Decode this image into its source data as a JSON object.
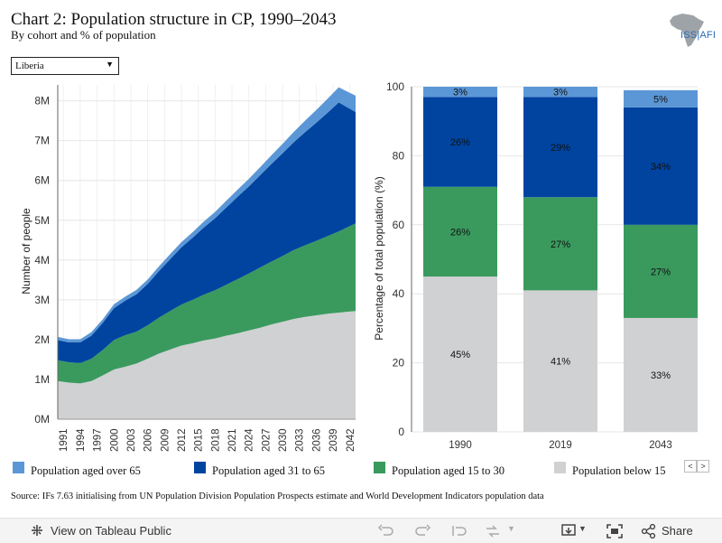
{
  "header": {
    "title": "Chart 2: Population structure in CP, 1990–2043",
    "subtitle": "By cohort and % of population",
    "logo_text": "ISS|AFI"
  },
  "filter": {
    "selected": "Liberia"
  },
  "colors": {
    "over65": "#5b97d6",
    "age31to65": "#0044a0",
    "age15to30": "#3a9a5e",
    "below15": "#d0d1d3",
    "grid": "#e6e6e6",
    "axis": "#666666"
  },
  "chart_data": [
    {
      "type": "area",
      "stacked": true,
      "ylabel": "Number of people",
      "xlim": [
        1990,
        2043
      ],
      "ylim": [
        0,
        8400000
      ],
      "y_ticks": [
        0,
        1000000,
        2000000,
        3000000,
        4000000,
        5000000,
        6000000,
        7000000,
        8000000
      ],
      "y_tick_labels": [
        "0M",
        "1M",
        "2M",
        "3M",
        "4M",
        "5M",
        "6M",
        "7M",
        "8M"
      ],
      "x_ticks": [
        1991,
        1994,
        1997,
        2000,
        2003,
        2006,
        2009,
        2012,
        2015,
        2018,
        2021,
        2024,
        2027,
        2030,
        2033,
        2036,
        2039,
        2042
      ],
      "grid": true,
      "x": [
        1990,
        1992,
        1994,
        1996,
        1998,
        2000,
        2002,
        2004,
        2006,
        2008,
        2010,
        2012,
        2014,
        2016,
        2018,
        2020,
        2022,
        2024,
        2026,
        2028,
        2030,
        2032,
        2034,
        2036,
        2038,
        2040,
        2043
      ],
      "series": [
        {
          "name": "Population below 15",
          "key": "below15",
          "values": [
            960000,
            920000,
            900000,
            960000,
            1100000,
            1250000,
            1320000,
            1400000,
            1520000,
            1650000,
            1750000,
            1850000,
            1910000,
            1980000,
            2030000,
            2100000,
            2160000,
            2230000,
            2300000,
            2380000,
            2450000,
            2520000,
            2570000,
            2610000,
            2650000,
            2680000,
            2720000
          ]
        },
        {
          "name": "Population aged 15 to 30",
          "key": "age15to30",
          "values": [
            520000,
            510000,
            510000,
            560000,
            640000,
            740000,
            790000,
            800000,
            840000,
            900000,
            970000,
            1030000,
            1090000,
            1150000,
            1210000,
            1280000,
            1360000,
            1430000,
            1510000,
            1580000,
            1650000,
            1730000,
            1800000,
            1870000,
            1950000,
            2040000,
            2200000
          ]
        },
        {
          "name": "Population aged 31 to 65",
          "key": "age31to65",
          "values": [
            510000,
            500000,
            520000,
            580000,
            680000,
            800000,
            870000,
            940000,
            1040000,
            1170000,
            1300000,
            1440000,
            1560000,
            1690000,
            1810000,
            1940000,
            2070000,
            2190000,
            2320000,
            2450000,
            2580000,
            2710000,
            2840000,
            2970000,
            3100000,
            3240000,
            2800000
          ]
        },
        {
          "name": "Population aged over 65",
          "key": "over65",
          "values": [
            80000,
            80000,
            80000,
            90000,
            90000,
            100000,
            100000,
            110000,
            110000,
            120000,
            130000,
            130000,
            140000,
            150000,
            160000,
            170000,
            180000,
            190000,
            200000,
            220000,
            240000,
            260000,
            290000,
            320000,
            350000,
            380000,
            410000
          ]
        }
      ]
    },
    {
      "type": "bar",
      "stacked": true,
      "ylabel": "Percentage of total population (%)",
      "ylim": [
        0,
        100
      ],
      "y_ticks": [
        0,
        20,
        40,
        60,
        80,
        100
      ],
      "grid": true,
      "categories": [
        "1990",
        "2019",
        "2043"
      ],
      "series": [
        {
          "name": "Population below 15",
          "key": "below15",
          "values": [
            45,
            41,
            33
          ],
          "labels": [
            "45%",
            "41%",
            "33%"
          ]
        },
        {
          "name": "Population aged 15 to 30",
          "key": "age15to30",
          "values": [
            26,
            27,
            27
          ],
          "labels": [
            "26%",
            "27%",
            "27%"
          ]
        },
        {
          "name": "Population aged 31 to 65",
          "key": "age31to65",
          "values": [
            26,
            29,
            34
          ],
          "labels": [
            "26%",
            "29%",
            "34%"
          ]
        },
        {
          "name": "Population aged over 65",
          "key": "over65",
          "values": [
            3,
            3,
            5
          ],
          "labels": [
            "3%",
            "3%",
            "5%"
          ]
        }
      ]
    }
  ],
  "legend": [
    {
      "label": "Population aged over 65",
      "color_key": "over65"
    },
    {
      "label": "Population aged 31 to 65",
      "color_key": "age31to65"
    },
    {
      "label": "Population aged 15 to 30",
      "color_key": "age15to30"
    },
    {
      "label": "Population below 15",
      "color_key": "below15"
    }
  ],
  "source": "Source: IFs 7.63 initialising from UN Population Division Population Prospects estimate and World Development Indicators population data",
  "footer": {
    "view_label": "View on Tableau Public",
    "share_label": "Share",
    "icons": [
      "tableau-icon",
      "undo-icon",
      "redo-icon",
      "revert-icon",
      "refresh-icon",
      "download-icon",
      "fullscreen-icon",
      "share-icon"
    ]
  }
}
